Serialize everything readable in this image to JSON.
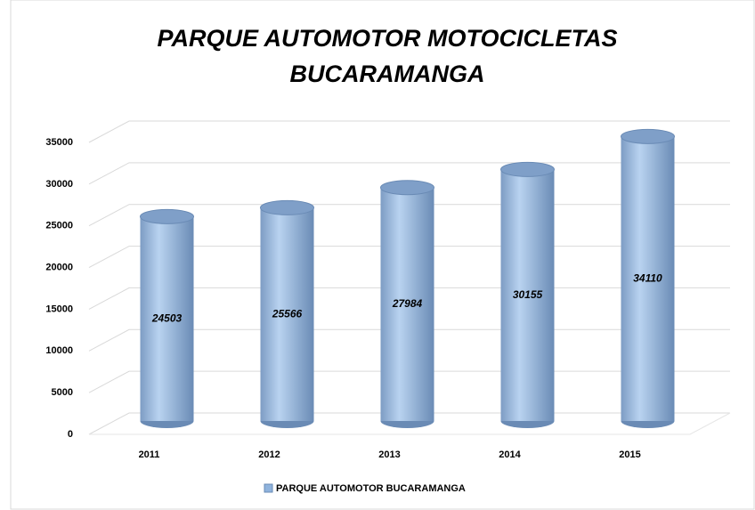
{
  "chart_data": {
    "type": "bar3d",
    "title": "PARQUE AUTOMOTOR MOTOCICLETAS BUCARAMANGA",
    "categories": [
      "2011",
      "2012",
      "2013",
      "2014",
      "2015"
    ],
    "series": [
      {
        "name": "PARQUE AUTOMOTOR BUCARAMANGA",
        "color": "#8fb3dd",
        "values": [
          24503,
          25566,
          27984,
          30155,
          34110
        ]
      }
    ],
    "ylim": [
      0,
      35000
    ],
    "yticks": [
      0,
      5000,
      10000,
      15000,
      20000,
      25000,
      30000,
      35000
    ],
    "grid": true,
    "legend": "bottom"
  }
}
